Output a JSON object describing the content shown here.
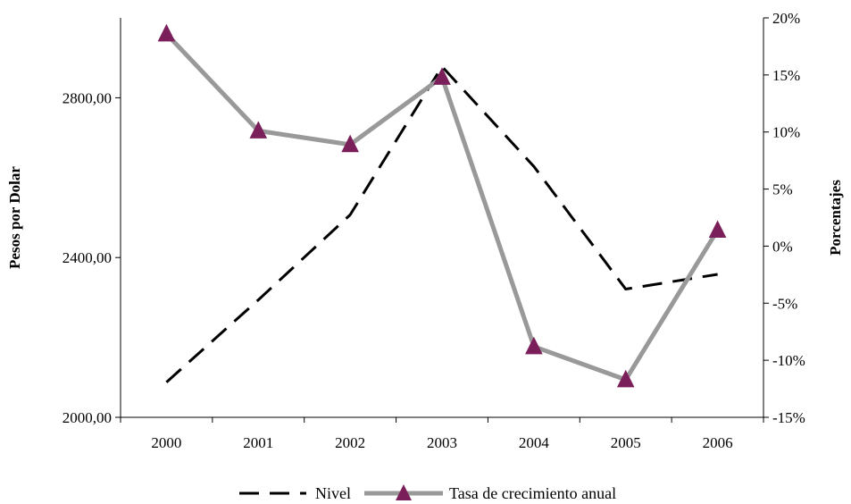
{
  "chart_data": {
    "type": "line",
    "categories": [
      "2000",
      "2001",
      "2002",
      "2003",
      "2004",
      "2005",
      "2006"
    ],
    "y_left": {
      "label": "Pesos por Dolar",
      "ticks": [
        "2000,00",
        "2400,00",
        "2800,00"
      ],
      "tick_values": [
        2000,
        2400,
        2800
      ],
      "range": [
        2000,
        3000
      ]
    },
    "y_right": {
      "label": "Porcentajes",
      "ticks": [
        "-15%",
        "-10%",
        "-5%",
        "0%",
        "5%",
        "10%",
        "15%",
        "20%"
      ],
      "tick_values": [
        -15,
        -10,
        -5,
        0,
        5,
        10,
        15,
        20
      ],
      "range": [
        -15,
        20
      ]
    },
    "series": [
      {
        "name": "Nivel",
        "axis": "left",
        "style": "dashed",
        "color": "#000000",
        "values": [
          2088,
          2294,
          2507,
          2878,
          2628,
          2321,
          2358
        ]
      },
      {
        "name": "Tasa de crecimiento anual",
        "axis": "right",
        "style": "solid-marker-triangle",
        "color": "#999999",
        "marker_color": "#7b1f5a",
        "values": [
          18.6,
          10.1,
          8.9,
          14.8,
          -8.8,
          -11.7,
          1.4
        ]
      }
    ],
    "legend": {
      "position": "bottom",
      "items": [
        "Nivel",
        "Tasa de crecimiento anual"
      ]
    },
    "grid": false
  }
}
